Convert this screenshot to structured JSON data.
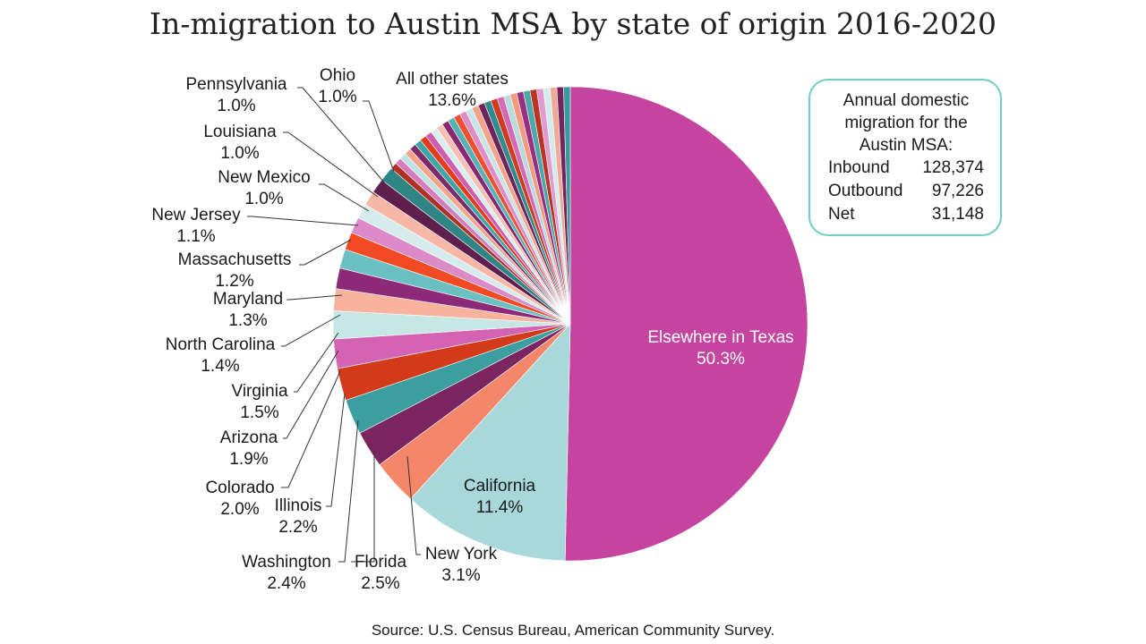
{
  "title": "In-migration to Austin MSA by state of origin 2016-2020",
  "source": "Source:  U.S. Census Bureau, American Community Survey.",
  "info_box": {
    "header_lines": [
      "Annual domestic",
      "migration for the",
      "Austin MSA:"
    ],
    "rows": [
      {
        "label": "Inbound",
        "value": "128,374"
      },
      {
        "label": "Outbound",
        "value": "97,226"
      },
      {
        "label": "Net",
        "value": "31,148"
      }
    ]
  },
  "chart_data": {
    "type": "pie",
    "title": "In-migration to Austin MSA by state of origin 2016-2020",
    "slices": [
      {
        "name": "Elsewhere in Texas",
        "value": 50.3,
        "pct_label": "50.3%",
        "color": "#c4449f"
      },
      {
        "name": "California",
        "value": 11.4,
        "pct_label": "11.4%",
        "color": "#a8d8da"
      },
      {
        "name": "New York",
        "value": 3.1,
        "pct_label": "3.1%",
        "color": "#f4866a"
      },
      {
        "name": "Florida",
        "value": 2.5,
        "pct_label": "2.5%",
        "color": "#7a2460"
      },
      {
        "name": "Washington",
        "value": 2.4,
        "pct_label": "2.4%",
        "color": "#3c9e9e"
      },
      {
        "name": "Illinois",
        "value": 2.2,
        "pct_label": "2.2%",
        "color": "#d23a1a"
      },
      {
        "name": "Colorado",
        "value": 2.0,
        "pct_label": "2.0%",
        "color": "#d463b3"
      },
      {
        "name": "Arizona",
        "value": 1.9,
        "pct_label": "1.9%",
        "color": "#c7e6e6"
      },
      {
        "name": "Virginia",
        "value": 1.5,
        "pct_label": "1.5%",
        "color": "#f9b29e"
      },
      {
        "name": "North Carolina",
        "value": 1.4,
        "pct_label": "1.4%",
        "color": "#8c2a78"
      },
      {
        "name": "Maryland",
        "value": 1.3,
        "pct_label": "1.3%",
        "color": "#6bc0c2"
      },
      {
        "name": "Massachusetts",
        "value": 1.2,
        "pct_label": "1.2%",
        "color": "#f24a22"
      },
      {
        "name": "New Jersey",
        "value": 1.1,
        "pct_label": "1.1%",
        "color": "#dd8ac8"
      },
      {
        "name": "New Mexico",
        "value": 1.0,
        "pct_label": "1.0%",
        "color": "#d6ecec"
      },
      {
        "name": "Louisiana",
        "value": 1.0,
        "pct_label": "1.0%",
        "color": "#f7b6a6"
      },
      {
        "name": "Pennsylvania",
        "value": 1.0,
        "pct_label": "1.0%",
        "color": "#5e1e4e"
      },
      {
        "name": "Ohio",
        "value": 1.0,
        "pct_label": "1.0%",
        "color": "#2f8484"
      },
      {
        "name": "All other states",
        "value": 13.6,
        "pct_label": "13.6%",
        "color": "#b03026"
      }
    ],
    "other_states_palette": [
      "#b03026",
      "#d77bbf",
      "#bfe3e3",
      "#f7a48c",
      "#7b2a6a",
      "#3fa6a6",
      "#e63b1c",
      "#ce5fae",
      "#d9eeee",
      "#f8c0b0",
      "#882772",
      "#57b3b3",
      "#f05030",
      "#e08cc8",
      "#c9e6e6",
      "#f6a28a",
      "#6d2459",
      "#2e8c8c",
      "#cf3a20",
      "#d46ab6",
      "#b8dcdc",
      "#f39a80",
      "#9a2e80",
      "#4aa9a9",
      "#bb3322",
      "#e39ad0",
      "#d0ecec",
      "#f1aa96",
      "#74245f",
      "#399c9c"
    ]
  }
}
